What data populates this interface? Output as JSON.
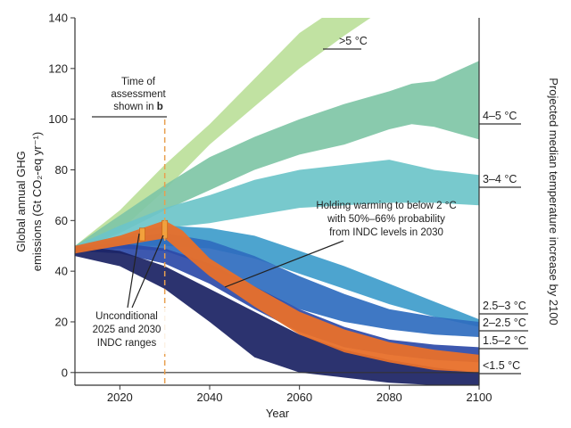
{
  "chart_data": {
    "type": "area",
    "xlabel": "Year",
    "ylabel": "Global annual GHG emissions (Gt CO₂-eq yr⁻¹)",
    "ylabel_line1": "Global annual GHG",
    "ylabel_line2": "emissions (Gt CO₂-eq yr⁻¹)",
    "right_label": "Projected median temperature increase by 2100",
    "xlim": [
      2010,
      2100
    ],
    "ylim": [
      -5,
      140
    ],
    "x_ticks": [
      2020,
      2040,
      2060,
      2080,
      2100
    ],
    "y_ticks": [
      0,
      20,
      40,
      60,
      80,
      100,
      120,
      140
    ],
    "grid": false,
    "series": [
      {
        "name": ">5 °C",
        "color": "#bcdf9a",
        "x": [
          2010,
          2020,
          2030,
          2040,
          2050,
          2060,
          2070,
          2080
        ],
        "lower": [
          48,
          56,
          72,
          90,
          105,
          120,
          133,
          145
        ],
        "upper": [
          50,
          64,
          82,
          98,
          116,
          134,
          146,
          152
        ]
      },
      {
        "name": "4–5 °C",
        "color": "#7fc6a6",
        "x": [
          2010,
          2020,
          2030,
          2040,
          2050,
          2060,
          2070,
          2080,
          2085,
          2090,
          2100
        ],
        "lower": [
          48,
          55,
          64,
          72,
          80,
          86,
          90,
          96,
          98,
          97,
          92
        ],
        "upper": [
          50,
          62,
          74,
          85,
          93,
          100,
          106,
          111,
          114,
          115,
          123
        ]
      },
      {
        "name": "3–4 °C",
        "color": "#6cc4c9",
        "x": [
          2010,
          2020,
          2030,
          2040,
          2050,
          2060,
          2070,
          2080,
          2090,
          2100
        ],
        "lower": [
          48,
          52,
          57,
          59,
          62,
          65,
          66,
          67,
          67,
          66
        ],
        "upper": [
          50,
          58,
          65,
          70,
          76,
          80,
          82,
          84,
          80,
          78
        ]
      },
      {
        "name": "2.5–3 °C",
        "color": "#3e9ccb",
        "x": [
          2010,
          2020,
          2030,
          2040,
          2050,
          2060,
          2070,
          2080,
          2090,
          2100
        ],
        "lower": [
          48,
          50,
          50,
          49,
          45,
          39,
          33,
          27,
          22,
          18
        ],
        "upper": [
          50,
          54,
          58,
          57,
          54,
          48,
          42,
          35,
          28,
          21
        ]
      },
      {
        "name": "2–2.5 °C",
        "color": "#2f6dbf",
        "x": [
          2010,
          2020,
          2030,
          2040,
          2050,
          2060,
          2070,
          2080,
          2090,
          2100
        ],
        "lower": [
          48,
          49,
          48,
          42,
          33,
          25,
          20,
          17,
          15,
          14
        ],
        "upper": [
          50,
          53,
          55,
          52,
          46,
          38,
          31,
          25,
          22,
          20
        ]
      },
      {
        "name": "1.5–2 °C",
        "color": "#2d4aa8",
        "x": [
          2010,
          2020,
          2030,
          2040,
          2050,
          2060,
          2070,
          2080,
          2090,
          2100
        ],
        "lower": [
          48,
          47,
          43,
          35,
          25,
          16,
          10,
          7,
          5,
          4
        ],
        "upper": [
          50,
          51,
          49,
          43,
          34,
          25,
          18,
          13,
          11,
          10
        ]
      },
      {
        "name": "<1.5 °C",
        "color": "#1a2263",
        "x": [
          2010,
          2020,
          2030,
          2040,
          2050,
          2060,
          2070,
          2080,
          2090,
          2100
        ],
        "lower": [
          46,
          42,
          33,
          20,
          6,
          0,
          -2,
          -4,
          -5,
          -6
        ],
        "upper": [
          50,
          48,
          42,
          33,
          24,
          15,
          9,
          5,
          2,
          0
        ]
      },
      {
        "name": "Holding warming to below 2 °C with 50%–66% probability from INDC levels in 2030",
        "color": "#e8702a",
        "x": [
          2010,
          2020,
          2030,
          2034,
          2040,
          2050,
          2060,
          2070,
          2080,
          2090,
          2100
        ],
        "lower": [
          47,
          50,
          53,
          47,
          38,
          26,
          15,
          8,
          4,
          1,
          0
        ],
        "upper": [
          50,
          54,
          60,
          56,
          45,
          34,
          24,
          17,
          12,
          9,
          7
        ]
      }
    ],
    "indc_ranges": [
      {
        "x": 2025,
        "low": 52,
        "high": 57
      },
      {
        "x": 2030,
        "low": 53,
        "high": 60
      }
    ],
    "assessment_year": 2030
  },
  "annotations": {
    "assessment_line1": "Time of",
    "assessment_line2": "assessment",
    "assessment_line3_prefix": "shown in",
    "assessment_line3_bold": "b",
    "holding_line1": "Holding warming to below 2 °C",
    "holding_line2": "with 50%–66% probability",
    "holding_line3": "from INDC levels in 2030",
    "indc_line1": "Unconditional",
    "indc_line2": "2025 and 2030",
    "indc_line3": "INDC ranges"
  },
  "band_labels": [
    {
      "text": ">5 °C"
    },
    {
      "text": "4–5 °C"
    },
    {
      "text": "3–4 °C"
    },
    {
      "text": "2.5–3 °C"
    },
    {
      "text": "2–2.5 °C"
    },
    {
      "text": "1.5–2 °C"
    },
    {
      "text": "<1.5 °C"
    }
  ],
  "colors": {
    "axis": "#333333",
    "assessment_line": "#e8a050"
  }
}
